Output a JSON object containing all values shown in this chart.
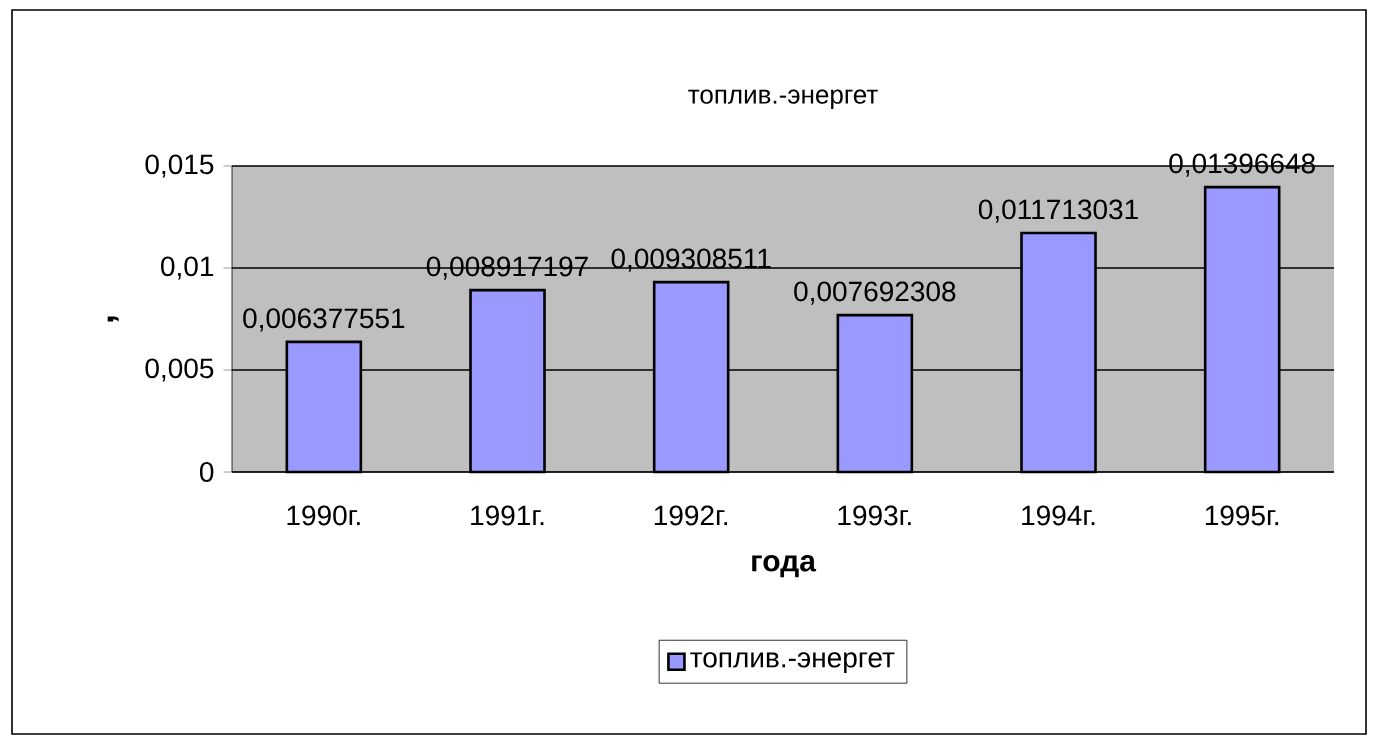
{
  "chart_data": {
    "type": "bar",
    "title": "топлив.-энергет",
    "xlabel": "года",
    "ylabel": ",",
    "categories": [
      "1990г.",
      "1991г.",
      "1992г.",
      "1993г.",
      "1994г.",
      "1995г."
    ],
    "series": [
      {
        "name": "топлив.-энергет",
        "color": "#9999ff",
        "values": [
          0.006377551,
          0.008917197,
          0.009308511,
          0.007692308,
          0.011713031,
          0.01396648
        ],
        "value_labels": [
          "0,006377551",
          "0,008917197",
          "0,009308511",
          "0,007692308",
          "0,011713031",
          "0,01396648"
        ]
      }
    ],
    "ylim": [
      0,
      0.015
    ],
    "yticks": [
      {
        "value": 0,
        "label": "0"
      },
      {
        "value": 0.005,
        "label": "0,005"
      },
      {
        "value": 0.01,
        "label": "0,01"
      },
      {
        "value": 0.015,
        "label": "0,015"
      }
    ],
    "grid": "y",
    "legend": "bottom"
  }
}
